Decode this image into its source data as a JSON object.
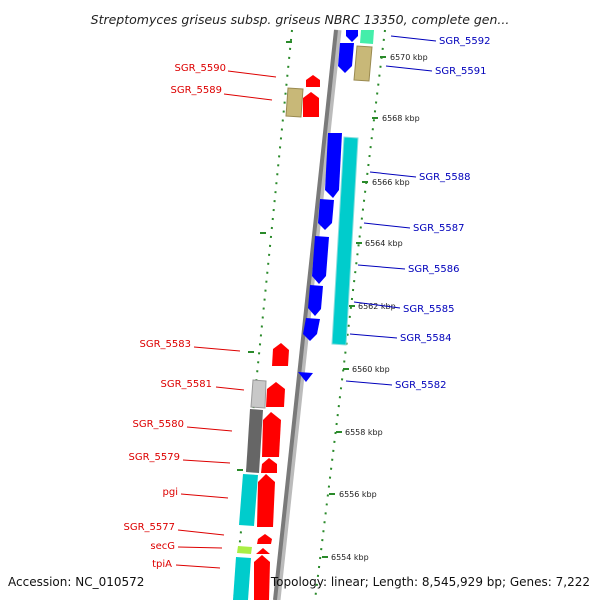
{
  "title": "Streptomyces griseus subsp. griseus NBRC 13350, complete gen...",
  "accession": "Accession: NC_010572",
  "topology": "Topology: linear; Length: 8,545,929 bp; Genes: 7,222",
  "scale_labels": [
    "6570 kbp",
    "6568 kbp",
    "6566 kbp",
    "6564 kbp",
    "6562 kbp",
    "6560 kbp",
    "6558 kbp",
    "6556 kbp",
    "6554 kbp"
  ],
  "left_genes": [
    "SGR_5590",
    "SGR_5589",
    "SGR_5583",
    "SGR_5581",
    "SGR_5580",
    "SGR_5579",
    "pgi",
    "SGR_5577",
    "secG",
    "tpiA"
  ],
  "right_genes": [
    "SGR_5592",
    "SGR_5591",
    "SGR_5588",
    "SGR_5587",
    "SGR_5586",
    "SGR_5585",
    "SGR_5584",
    "SGR_5582"
  ],
  "colors": {
    "forward": "#ff0000",
    "reverse": "#0000ff",
    "cyan": "#00cccc",
    "khaki": "#c8b878",
    "gray_dark": "#666666",
    "gray_light": "#c8c8c8",
    "lime": "#aaee44",
    "mint": "#44eeaa",
    "axis": "#888888",
    "dots": "#2a8a2a",
    "left_label": "#dd0000",
    "right_label": "#0000bb"
  }
}
